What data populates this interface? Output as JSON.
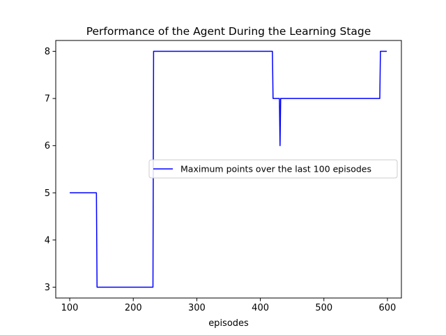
{
  "chart_data": {
    "type": "line",
    "title": "Performance of the Agent During the Learning Stage",
    "xlabel": "episodes",
    "ylabel": "",
    "xlim": [
      78,
      622
    ],
    "ylim": [
      2.77,
      8.23
    ],
    "xticks": [
      100,
      200,
      300,
      400,
      500,
      600
    ],
    "yticks": [
      3,
      4,
      5,
      6,
      7,
      8
    ],
    "grid": false,
    "legend_position": "center-right",
    "series": [
      {
        "name": "Maximum points over the last 100 episodes",
        "color": "#0000ff",
        "x": [
          100,
          142,
          143,
          231,
          232,
          419,
          420,
          430,
          431,
          432,
          433,
          588,
          589,
          599
        ],
        "y": [
          5,
          5,
          3,
          3,
          8,
          8,
          7,
          7,
          6,
          7,
          7,
          7,
          8,
          8
        ]
      }
    ]
  }
}
